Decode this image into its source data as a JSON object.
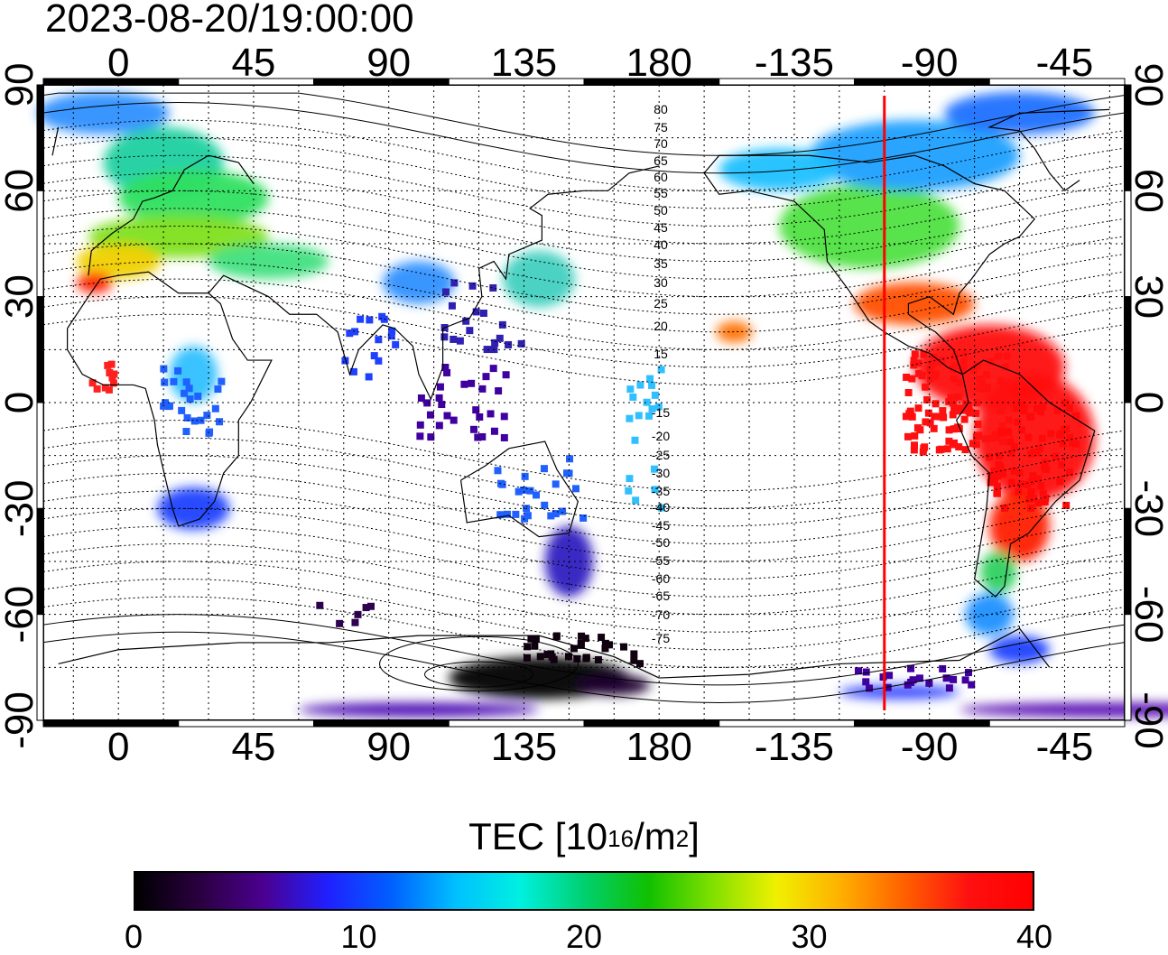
{
  "timestamp": "2023-08-20/19:00:00",
  "map": {
    "top_lon_labels": [
      "0",
      "45",
      "90",
      "135",
      "180",
      "-135",
      "-90",
      "-45"
    ],
    "bottom_lon_labels": [
      "0",
      "45",
      "90",
      "135",
      "180",
      "-135",
      "-90",
      "-45"
    ],
    "left_lat_labels": [
      "90",
      "60",
      "30",
      "0",
      "-30",
      "-60",
      "-90"
    ],
    "right_lat_labels": [
      "90",
      "60",
      "30",
      "0",
      "-30",
      "-60",
      "-90"
    ],
    "lon_ticks": [
      0,
      45,
      90,
      135,
      180,
      225,
      270,
      315
    ],
    "lat_ticks": [
      90,
      60,
      30,
      0,
      -30,
      -60,
      -90
    ],
    "lon_range": [
      -25,
      335
    ],
    "lat_range": [
      -90,
      90
    ],
    "contour_labels_north": [
      "80",
      "75",
      "70",
      "65",
      "60",
      "55",
      "50",
      "45",
      "40",
      "35",
      "30",
      "25",
      "20",
      "15"
    ],
    "contour_labels_south": [
      "-15",
      "-20",
      "-25",
      "-30",
      "-35",
      "-40",
      "-45",
      "-50",
      "-55",
      "-60",
      "-65",
      "-70",
      "-75"
    ],
    "marker_longitude": -105,
    "marker_color": "#ff0000"
  },
  "colorbar": {
    "title_prefix": "TEC  [10",
    "title_exp1": "16",
    "title_mid": "/m",
    "title_exp2": "2",
    "title_suffix": "]",
    "tick_labels": [
      "0",
      "10",
      "20",
      "30",
      "40"
    ],
    "min": 0,
    "max": 40,
    "colors": [
      "#000000",
      "#2a0040",
      "#4b0090",
      "#2020ff",
      "#0060ff",
      "#00c0ff",
      "#00f0e0",
      "#00d070",
      "#10c000",
      "#80e000",
      "#f0f000",
      "#ffb000",
      "#ff6000",
      "#ff1010",
      "#ff0000"
    ]
  },
  "legend_colors": {
    "low": "#2a0060",
    "mid": "#00d0a0",
    "high": "#ff1000"
  }
}
